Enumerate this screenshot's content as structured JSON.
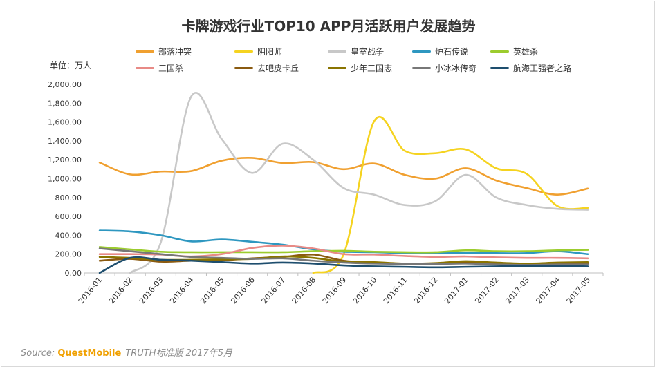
{
  "title": "卡牌游戏行业TOP10  APP月活跃用户发展趋势",
  "unit_label": "单位：万人",
  "source": {
    "prefix": "Source:",
    "brand": "QuestMobile",
    "rest": "TRUTH标准版 2017年5月"
  },
  "chart_data": {
    "type": "line",
    "x": [
      "2016-01",
      "2016-02",
      "2016-03",
      "2016-04",
      "2016-05",
      "2016-06",
      "2016-07",
      "2016-08",
      "2016-09",
      "2016-10",
      "2016-11",
      "2016-12",
      "2017-01",
      "2017-02",
      "2017-03",
      "2017-04",
      "2017-05"
    ],
    "ylim": [
      0,
      2000
    ],
    "yticks": [
      "0.00",
      "200.00",
      "400.00",
      "600.00",
      "800.00",
      "1,000.00",
      "1,200.00",
      "1,400.00",
      "1,600.00",
      "1,800.00",
      "2,000.00"
    ],
    "grid": false,
    "legend": "top",
    "series": [
      {
        "name": "部落冲突",
        "color": "#f0a030",
        "values": [
          1170,
          1045,
          1075,
          1080,
          1190,
          1220,
          1165,
          1175,
          1100,
          1160,
          1040,
          1000,
          1110,
          980,
          900,
          830,
          895
        ]
      },
      {
        "name": "阴阳师",
        "color": "#f5d320",
        "values": [
          null,
          null,
          null,
          null,
          null,
          null,
          null,
          0,
          200,
          1610,
          1295,
          1270,
          1310,
          1110,
          1050,
          710,
          690
        ]
      },
      {
        "name": "皇室战争",
        "color": "#c8c8c8",
        "values": [
          null,
          0,
          320,
          1870,
          1420,
          1060,
          1370,
          1200,
          900,
          830,
          720,
          760,
          1040,
          800,
          720,
          680,
          670
        ]
      },
      {
        "name": "炉石传说",
        "color": "#2e97c0",
        "values": [
          450,
          440,
          400,
          335,
          355,
          330,
          300,
          250,
          225,
          220,
          210,
          210,
          215,
          210,
          210,
          230,
          200
        ]
      },
      {
        "name": "英雄杀",
        "color": "#9ccc2e",
        "values": [
          275,
          250,
          225,
          220,
          220,
          220,
          220,
          230,
          235,
          225,
          220,
          220,
          240,
          230,
          230,
          240,
          245
        ]
      },
      {
        "name": "三国杀",
        "color": "#e88a86",
        "values": [
          200,
          200,
          195,
          175,
          200,
          265,
          290,
          260,
          200,
          195,
          180,
          170,
          175,
          165,
          160,
          160,
          155
        ]
      },
      {
        "name": "去吧皮卡丘",
        "color": "#8a5a10",
        "values": [
          130,
          150,
          120,
          130,
          135,
          155,
          170,
          195,
          130,
          110,
          95,
          100,
          110,
          100,
          95,
          100,
          100
        ]
      },
      {
        "name": "少年三国志",
        "color": "#8a7400",
        "values": [
          170,
          160,
          140,
          140,
          145,
          150,
          175,
          160,
          120,
          115,
          100,
          105,
          125,
          110,
          100,
          110,
          115
        ]
      },
      {
        "name": "小冰冰传奇",
        "color": "#777777",
        "values": [
          260,
          230,
          200,
          170,
          160,
          150,
          155,
          130,
          110,
          100,
          95,
          95,
          100,
          90,
          85,
          90,
          90
        ]
      },
      {
        "name": "航海王强者之路",
        "color": "#1e4e6e",
        "values": [
          0,
          160,
          140,
          130,
          115,
          100,
          110,
          100,
          80,
          70,
          65,
          60,
          65,
          70,
          75,
          75,
          70
        ]
      }
    ]
  }
}
